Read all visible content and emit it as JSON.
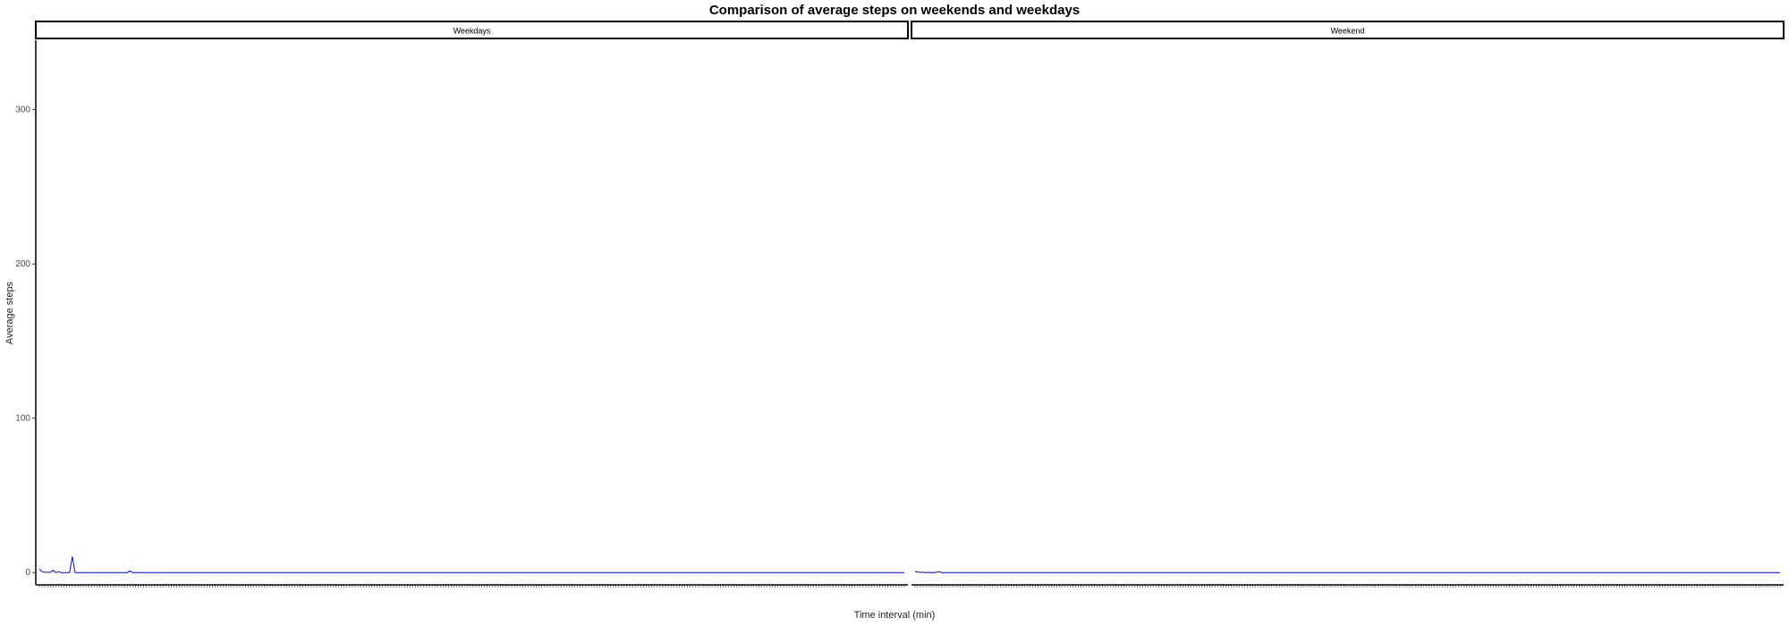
{
  "chart_data": {
    "type": "line",
    "title": "Comparison of average steps on weekends and weekdays",
    "xlabel": "Time interval (min)",
    "ylabel": "Average steps",
    "ylim": [
      -8,
      345
    ],
    "yticks": [
      0,
      100,
      200,
      300
    ],
    "ytick_labels": [
      "0",
      "100",
      "200",
      "300"
    ],
    "grid": false,
    "line_color": "#0000ff",
    "panels": [
      {
        "name": "Weekdays",
        "series": [
          {
            "x_start": 0,
            "x_step": 5,
            "values": [
              2.3,
              0.5,
              0.2,
              0.2,
              0.1,
              1.5,
              0,
              0.5,
              0,
              0,
              0,
              0,
              10.3,
              0,
              0,
              0,
              0,
              0,
              0,
              0,
              0,
              0,
              0,
              0,
              0,
              0,
              0,
              0,
              0,
              0,
              0,
              0,
              0,
              1,
              0,
              0,
              0,
              0,
              0,
              0,
              0,
              0,
              0,
              0,
              0,
              0,
              0,
              0,
              0,
              0,
              0,
              0,
              0,
              0,
              0,
              0,
              0,
              0,
              0,
              0,
              0,
              0,
              0,
              0,
              0,
              0,
              0,
              0,
              0,
              0,
              0,
              0,
              0,
              0,
              0,
              0,
              0,
              0,
              0,
              0,
              0,
              0,
              0,
              0,
              0,
              0,
              0,
              0,
              0,
              0,
              0,
              0,
              0,
              0,
              0,
              0,
              0,
              0,
              0,
              0,
              0,
              0,
              0,
              0,
              0,
              0,
              0,
              0,
              0,
              0,
              0,
              0,
              0,
              0,
              0,
              0,
              0,
              0,
              0,
              0,
              0,
              0,
              0,
              0,
              0,
              0,
              0,
              0,
              0,
              0,
              0,
              0,
              0,
              0,
              0,
              0,
              0,
              0,
              0,
              0,
              0,
              0,
              0,
              0,
              0,
              0,
              0,
              0,
              0,
              0,
              0,
              0,
              0,
              0,
              0,
              0,
              0,
              0,
              0,
              0,
              0,
              0,
              0,
              0,
              0,
              0,
              0,
              0,
              0,
              0,
              0,
              0,
              0,
              0,
              0,
              0,
              0,
              0,
              0,
              0,
              0,
              0,
              0,
              0,
              0,
              0,
              0,
              0,
              0,
              0,
              0,
              0,
              0,
              0,
              0,
              0,
              0,
              0,
              0,
              0,
              0,
              0,
              0,
              0,
              0,
              0,
              0,
              0,
              0,
              0,
              0,
              0,
              0,
              0,
              0,
              0,
              0,
              0,
              0,
              0,
              0,
              0,
              0,
              0,
              0,
              0,
              0,
              0,
              0,
              0,
              0,
              0,
              0,
              0,
              0,
              0,
              0,
              0,
              0,
              0,
              0,
              0,
              0,
              0,
              0,
              0,
              0,
              0,
              0,
              0,
              0,
              0,
              0,
              0,
              0,
              0,
              0,
              0,
              0,
              0,
              0,
              0,
              0,
              0,
              0,
              0,
              0,
              0,
              0,
              0,
              0,
              0,
              0,
              0,
              0,
              0,
              0,
              0,
              0,
              0,
              0,
              0,
              0,
              0,
              0,
              0,
              0,
              0,
              0,
              0,
              0,
              0,
              0,
              0,
              0,
              0,
              0,
              0,
              0,
              0,
              0,
              0,
              0,
              0,
              0,
              0,
              0,
              0,
              0,
              0,
              0,
              0,
              0,
              0,
              0,
              0
            ]
          }
        ]
      },
      {
        "name": "Weekend",
        "series": [
          {
            "x_start": 0,
            "x_step": 5,
            "values": [
              0.5,
              0.3,
              0.1,
              0.2,
              0,
              0.1,
              0,
              0,
              0.2,
              0.5,
              0,
              0,
              0,
              0,
              0,
              0,
              0,
              0,
              0,
              0,
              0,
              0,
              0,
              0,
              0,
              0,
              0,
              0,
              0,
              0,
              0,
              0,
              0,
              0,
              0,
              0,
              0,
              0,
              0,
              0,
              0,
              0,
              0,
              0,
              0,
              0,
              0,
              0,
              0,
              0,
              0,
              0,
              0,
              0,
              0,
              0,
              0,
              0,
              0,
              0,
              0,
              0,
              0,
              0,
              0,
              0,
              0,
              0,
              0,
              0,
              0,
              0,
              0,
              0,
              0,
              0,
              0,
              0,
              0,
              0,
              0,
              0,
              0,
              0,
              0,
              0,
              0,
              0,
              0,
              0,
              0,
              0,
              0,
              0,
              0,
              0,
              0,
              0,
              0,
              0,
              0,
              0,
              0,
              0,
              0,
              0,
              0,
              0,
              0,
              0,
              0,
              0,
              0,
              0,
              0,
              0,
              0,
              0,
              0,
              0,
              0,
              0,
              0,
              0,
              0,
              0,
              0,
              0,
              0,
              0,
              0,
              0,
              0,
              0,
              0,
              0,
              0,
              0,
              0,
              0,
              0,
              0,
              0,
              0,
              0,
              0,
              0,
              0,
              0,
              0,
              0,
              0,
              0,
              0,
              0,
              0,
              0,
              0,
              0,
              0,
              0,
              0,
              0,
              0,
              0,
              0,
              0,
              0,
              0,
              0,
              0,
              0,
              0,
              0,
              0,
              0,
              0,
              0,
              0,
              0,
              0,
              0,
              0,
              0,
              0,
              0,
              0,
              0,
              0,
              0,
              0,
              0,
              0,
              0,
              0,
              0,
              0,
              0,
              0,
              0,
              0,
              0,
              0,
              0,
              0,
              0,
              0,
              0,
              0,
              0,
              0,
              0,
              0,
              0,
              0,
              0,
              0,
              0,
              0,
              0,
              0,
              0,
              0,
              0,
              0,
              0,
              0,
              0,
              0,
              0,
              0,
              0,
              0,
              0,
              0,
              0,
              0,
              0,
              0,
              0,
              0,
              0,
              0,
              0,
              0,
              0,
              0,
              0,
              0,
              0,
              0,
              0,
              0,
              0,
              0,
              0,
              0,
              0,
              0,
              0,
              0,
              0,
              0,
              0,
              0,
              0,
              0,
              0,
              0,
              0,
              0,
              0,
              0,
              0,
              0,
              0,
              0,
              0,
              0,
              0,
              0,
              0,
              0,
              0,
              0,
              0,
              0,
              0,
              0,
              0,
              0,
              0,
              0,
              0,
              0,
              0,
              0,
              0,
              0,
              0,
              0,
              0,
              0,
              0,
              0,
              0,
              0,
              0,
              0,
              0,
              0,
              0,
              0,
              0,
              0,
              0,
              0,
              0,
              0,
              0,
              0,
              0,
              0,
              0
            ]
          }
        ]
      }
    ]
  }
}
